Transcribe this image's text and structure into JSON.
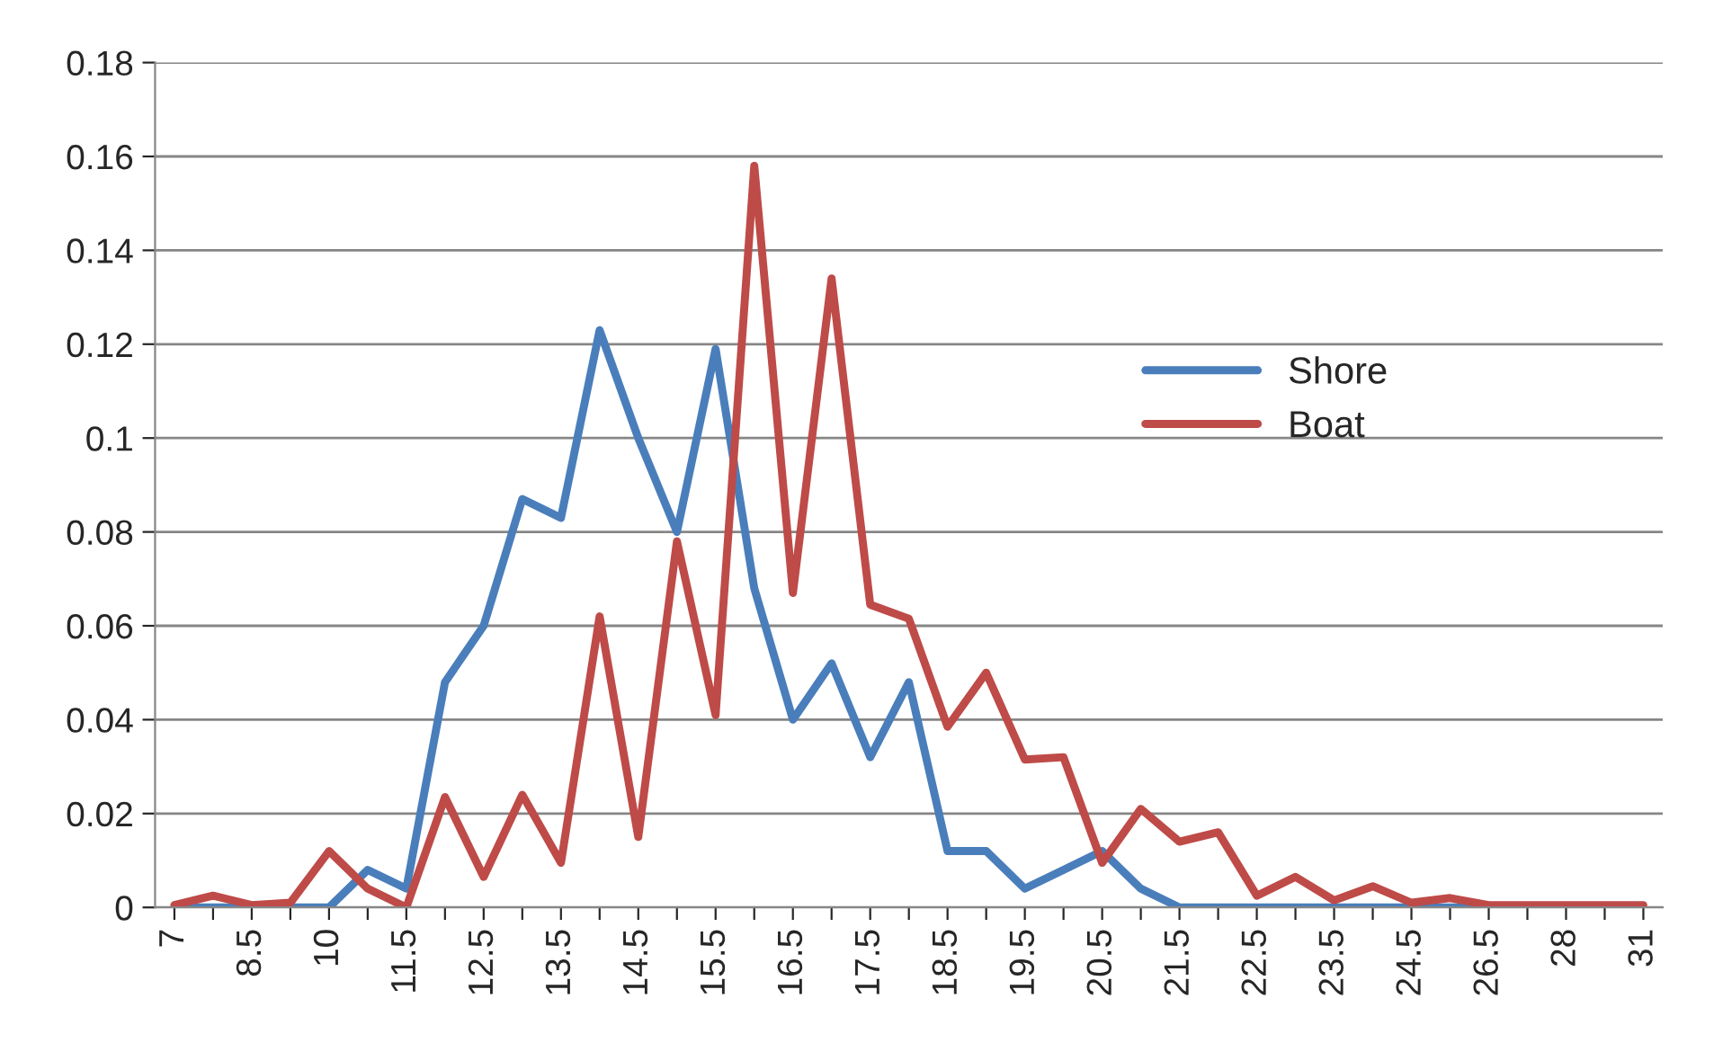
{
  "chart_data": {
    "type": "line",
    "categories": [
      "7",
      null,
      "8.5",
      null,
      "10",
      null,
      "11.5",
      null,
      "12.5",
      null,
      "13.5",
      null,
      "14.5",
      null,
      "15.5",
      null,
      "16.5",
      null,
      "17.5",
      null,
      "18.5",
      null,
      "19.5",
      null,
      "20.5",
      null,
      "21.5",
      null,
      "22.5",
      null,
      "23.5",
      null,
      "24.5",
      null,
      "26.5",
      null,
      "28",
      null,
      "31"
    ],
    "series": [
      {
        "name": "Shore",
        "color": "#4a7ebb",
        "values": [
          0,
          0,
          0,
          0,
          0,
          0.008,
          0.004,
          0.048,
          0.06,
          0.087,
          0.083,
          0.123,
          0.1,
          0.08,
          0.119,
          0.068,
          0.04,
          0.052,
          0.032,
          0.048,
          0.012,
          0.012,
          0.004,
          0.008,
          0.012,
          0.004,
          0,
          0,
          0,
          0,
          0,
          0,
          0,
          0,
          0,
          0,
          null,
          null,
          null
        ]
      },
      {
        "name": "Boat",
        "color": "#be4b48",
        "values": [
          0.0005,
          0.0025,
          0.0005,
          0.001,
          0.012,
          0.004,
          0,
          0.0235,
          0.0065,
          0.024,
          0.0095,
          0.062,
          0.015,
          0.078,
          0.041,
          0.158,
          0.067,
          0.134,
          0.0645,
          0.0615,
          0.0385,
          0.05,
          0.0315,
          0.032,
          0.0095,
          0.021,
          0.014,
          0.016,
          0.0025,
          0.0065,
          0.0015,
          0.0045,
          0.001,
          0.002,
          0.0005,
          0.0005,
          0.0005,
          0.0005,
          0.0005
        ]
      }
    ],
    "ylim": [
      0,
      0.18
    ],
    "yticks": [
      0,
      0.02,
      0.04,
      0.06,
      0.08,
      0.1,
      0.12,
      0.14,
      0.16,
      0.18
    ],
    "grid": "y",
    "legend": "center right",
    "marker": "none",
    "line_style": "solid"
  }
}
